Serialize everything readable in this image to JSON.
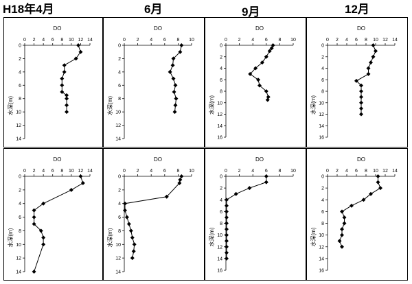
{
  "headers": [
    "H18年4月",
    "6月",
    "9月",
    "12月"
  ],
  "chart_data": [
    {
      "type": "line",
      "row": 0,
      "col": 0,
      "xlabel": "DO",
      "ylabel": "水深(m)",
      "xlim": [
        0,
        14
      ],
      "xticks": [
        0,
        2,
        4,
        6,
        8,
        10,
        12,
        14
      ],
      "ylim": [
        0,
        14
      ],
      "yticks": [
        0,
        2,
        4,
        6,
        8,
        10,
        12,
        14
      ],
      "points": [
        [
          11.5,
          0
        ],
        [
          12,
          1
        ],
        [
          11,
          2
        ],
        [
          8.5,
          3
        ],
        [
          8.5,
          4
        ],
        [
          8,
          5
        ],
        [
          8,
          6
        ],
        [
          8,
          7
        ],
        [
          9,
          7.5
        ],
        [
          9,
          8
        ],
        [
          9,
          9
        ],
        [
          9,
          10
        ]
      ]
    },
    {
      "type": "line",
      "row": 0,
      "col": 1,
      "xlabel": "DO",
      "ylabel": "水深(m)",
      "xlim": [
        0,
        10
      ],
      "xticks": [
        0,
        2,
        4,
        6,
        8,
        10
      ],
      "ylim": [
        0,
        14
      ],
      "yticks": [
        0,
        2,
        4,
        6,
        8,
        10,
        12,
        14
      ],
      "points": [
        [
          8.5,
          0
        ],
        [
          8.3,
          1
        ],
        [
          7.3,
          2
        ],
        [
          7.2,
          3
        ],
        [
          6.8,
          4
        ],
        [
          7.3,
          5
        ],
        [
          7.6,
          6
        ],
        [
          7.4,
          7
        ],
        [
          7.7,
          8
        ],
        [
          7.6,
          9
        ],
        [
          7.5,
          10
        ]
      ]
    },
    {
      "type": "line",
      "row": 0,
      "col": 2,
      "xlabel": "DO",
      "ylabel": "水深(m)",
      "xlim": [
        0,
        10
      ],
      "xticks": [
        0,
        2,
        4,
        6,
        8,
        10
      ],
      "ylim": [
        0,
        16
      ],
      "yticks": [
        0,
        2,
        4,
        6,
        8,
        10,
        12,
        14,
        16
      ],
      "points": [
        [
          7,
          0
        ],
        [
          6.8,
          0.5
        ],
        [
          6.5,
          1
        ],
        [
          6,
          2
        ],
        [
          5.4,
          3
        ],
        [
          4.4,
          4
        ],
        [
          3.6,
          5
        ],
        [
          4.8,
          6
        ],
        [
          5,
          7
        ],
        [
          6,
          8
        ],
        [
          6.3,
          9
        ],
        [
          6.2,
          9.5
        ]
      ]
    },
    {
      "type": "line",
      "row": 0,
      "col": 3,
      "xlabel": "DO",
      "ylabel": "水深(m)",
      "xlim": [
        0,
        14
      ],
      "xticks": [
        0,
        2,
        4,
        6,
        8,
        10,
        12,
        14
      ],
      "ylim": [
        0,
        16
      ],
      "yticks": [
        0,
        2,
        4,
        6,
        8,
        10,
        12,
        14,
        16
      ],
      "points": [
        [
          9.5,
          0
        ],
        [
          10,
          1
        ],
        [
          9.5,
          2
        ],
        [
          9,
          3
        ],
        [
          8.5,
          4
        ],
        [
          8.5,
          5
        ],
        [
          6,
          6.2
        ],
        [
          7,
          7
        ],
        [
          7,
          8
        ],
        [
          7,
          9
        ],
        [
          7,
          10
        ],
        [
          7,
          11
        ],
        [
          7,
          12
        ]
      ]
    },
    {
      "type": "line",
      "row": 1,
      "col": 0,
      "xlabel": "DO",
      "ylabel": "水深(m)",
      "xlim": [
        0,
        14
      ],
      "xticks": [
        0,
        2,
        4,
        6,
        8,
        10,
        12,
        14
      ],
      "ylim": [
        0,
        14
      ],
      "yticks": [
        0,
        2,
        4,
        6,
        8,
        10,
        12,
        14
      ],
      "points": [
        [
          12,
          0
        ],
        [
          12.5,
          1
        ],
        [
          10,
          2
        ],
        [
          4,
          4
        ],
        [
          2,
          5
        ],
        [
          2,
          6
        ],
        [
          2,
          7
        ],
        [
          3.5,
          8
        ],
        [
          4,
          9
        ],
        [
          4,
          10
        ],
        [
          2,
          14
        ]
      ]
    },
    {
      "type": "line",
      "row": 1,
      "col": 1,
      "xlabel": "DO",
      "ylabel": "水深(m)",
      "xlim": [
        0,
        10
      ],
      "xticks": [
        0,
        2,
        4,
        6,
        8,
        10
      ],
      "ylim": [
        0,
        14
      ],
      "yticks": [
        0,
        2,
        4,
        6,
        8,
        10,
        12,
        14
      ],
      "points": [
        [
          8.5,
          0
        ],
        [
          8.3,
          0.5
        ],
        [
          8.2,
          1
        ],
        [
          6.3,
          3
        ],
        [
          0.1,
          4
        ],
        [
          0.1,
          5
        ],
        [
          0.4,
          6
        ],
        [
          0.7,
          7
        ],
        [
          1,
          8
        ],
        [
          1.2,
          9
        ],
        [
          1.5,
          10
        ],
        [
          1.4,
          11
        ],
        [
          1.2,
          12
        ]
      ]
    },
    {
      "type": "line",
      "row": 1,
      "col": 2,
      "xlabel": "DO",
      "ylabel": "水深(m)",
      "xlim": [
        0,
        10
      ],
      "xticks": [
        0,
        2,
        4,
        6,
        8,
        10
      ],
      "ylim": [
        0,
        16
      ],
      "yticks": [
        0,
        2,
        4,
        6,
        8,
        10,
        12,
        14,
        16
      ],
      "points": [
        [
          6,
          0
        ],
        [
          6,
          1
        ],
        [
          3.5,
          2
        ],
        [
          1.5,
          3
        ],
        [
          0.1,
          4
        ],
        [
          0.1,
          5
        ],
        [
          0.1,
          6
        ],
        [
          0.1,
          7
        ],
        [
          0.1,
          8
        ],
        [
          0.1,
          9
        ],
        [
          0.1,
          10
        ],
        [
          0.1,
          11
        ],
        [
          0.1,
          12
        ],
        [
          0.1,
          13
        ],
        [
          0.1,
          14
        ]
      ]
    },
    {
      "type": "line",
      "row": 1,
      "col": 3,
      "xlabel": "DO",
      "ylabel": "水深(m)",
      "xlim": [
        0,
        14
      ],
      "xticks": [
        0,
        2,
        4,
        6,
        8,
        10,
        12,
        14
      ],
      "ylim": [
        0,
        16
      ],
      "yticks": [
        0,
        2,
        4,
        6,
        8,
        10,
        12,
        14,
        16
      ],
      "points": [
        [
          10.5,
          0
        ],
        [
          10.5,
          1
        ],
        [
          11,
          2
        ],
        [
          9,
          3
        ],
        [
          7.5,
          4
        ],
        [
          5,
          5
        ],
        [
          3,
          6
        ],
        [
          3.5,
          7
        ],
        [
          3.5,
          8
        ],
        [
          3,
          9
        ],
        [
          3,
          10
        ],
        [
          2.5,
          11
        ],
        [
          3,
          12
        ]
      ]
    }
  ]
}
